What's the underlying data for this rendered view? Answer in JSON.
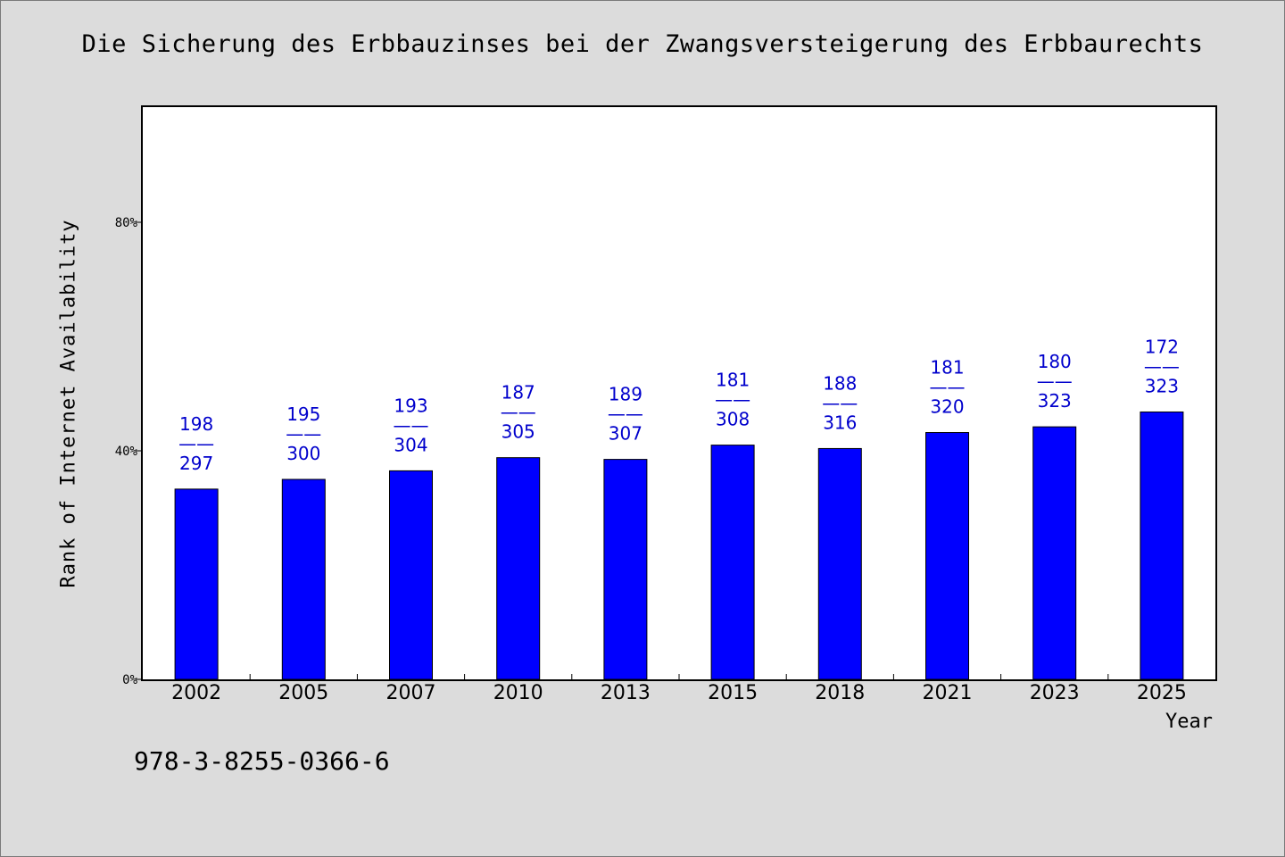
{
  "page": {
    "title": "Die Sicherung des Erbbauzinses bei der Zwangsversteigerung des Erbbaurechts",
    "isbn": "978-3-8255-0366-6",
    "background_color": "#dcdcdc"
  },
  "chart_data": {
    "type": "bar",
    "title": "Die Sicherung des Erbbauzinses bei der Zwangsversteigerung des Erbbaurechts",
    "xlabel": "Year",
    "ylabel": "Rank of Internet Availability",
    "categories": [
      "2002",
      "2005",
      "2007",
      "2010",
      "2013",
      "2015",
      "2018",
      "2021",
      "2023",
      "2025"
    ],
    "values": [
      33.3,
      35.0,
      36.5,
      38.8,
      38.5,
      41.0,
      40.4,
      43.2,
      44.2,
      46.8
    ],
    "data_labels": [
      {
        "top": "198",
        "sep": "——",
        "bottom": "297"
      },
      {
        "top": "195",
        "sep": "——",
        "bottom": "300"
      },
      {
        "top": "193",
        "sep": "——",
        "bottom": "304"
      },
      {
        "top": "187",
        "sep": "——",
        "bottom": "305"
      },
      {
        "top": "189",
        "sep": "——",
        "bottom": "307"
      },
      {
        "top": "181",
        "sep": "——",
        "bottom": "308"
      },
      {
        "top": "188",
        "sep": "——",
        "bottom": "316"
      },
      {
        "top": "181",
        "sep": "——",
        "bottom": "320"
      },
      {
        "top": "180",
        "sep": "——",
        "bottom": "323"
      },
      {
        "top": "172",
        "sep": "——",
        "bottom": "323"
      }
    ],
    "yticks": [
      {
        "value": 0,
        "label": "0%"
      },
      {
        "value": 40,
        "label": "40%"
      },
      {
        "value": 80,
        "label": "80%"
      }
    ],
    "ylim": [
      0,
      100
    ],
    "bar_color": "#0000ff",
    "label_color": "#0000cc",
    "grid": false,
    "legend": "none"
  }
}
